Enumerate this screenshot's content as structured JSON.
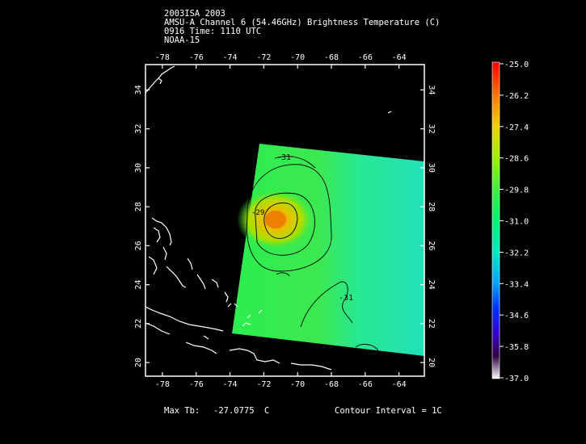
{
  "header": {
    "line1": "2003ISA 2003",
    "line2": "AMSU-A Channel 6 (54.46GHz) Brightness Temperature (C)",
    "line3": "0916 Time: 1110 UTC",
    "line4": "NOAA-15"
  },
  "map": {
    "lon_ticks": [
      "-78",
      "-76",
      "-74",
      "-72",
      "-70",
      "-68",
      "-66",
      "-64"
    ],
    "lat_ticks": [
      "20",
      "22",
      "24",
      "26",
      "28",
      "30",
      "32",
      "34"
    ],
    "lon_range": [
      -79,
      -62.5
    ],
    "lat_range": [
      19.3,
      35.3
    ],
    "contour_labels": [
      "-31",
      "-31",
      "-29"
    ],
    "swath_colors": {
      "background": "#2bee4f",
      "east": "#22e8a8",
      "core": "#f08a00",
      "inner": "#e8d400"
    }
  },
  "colorbar": {
    "labels": [
      "-25.0",
      "-26.2",
      "-27.4",
      "-28.6",
      "-29.8",
      "-31.0",
      "-32.2",
      "-33.4",
      "-34.6",
      "-35.8",
      "-37.0"
    ],
    "colors": [
      "#ff0000",
      "#ff8800",
      "#e8c800",
      "#a8e800",
      "#40e840",
      "#00e890",
      "#00c8e0",
      "#0078ff",
      "#0000d8",
      "#6000a0",
      "#ffffff"
    ]
  },
  "footer": {
    "max_label": "Max Tb:",
    "max_value": "-27.0775",
    "max_unit": "C",
    "contour_interval": "Contour Interval = 1C"
  }
}
